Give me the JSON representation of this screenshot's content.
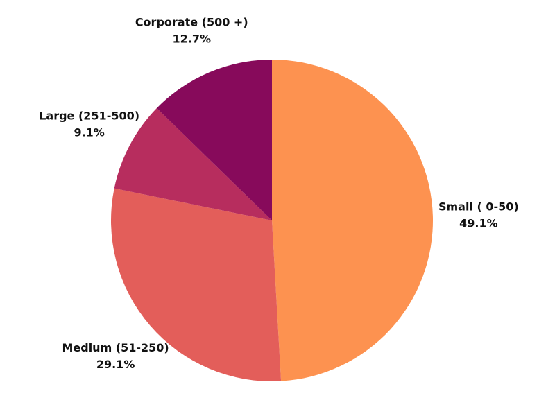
{
  "chart_data": {
    "type": "pie",
    "title": "",
    "slices": [
      {
        "label": "Small ( 0-50)",
        "value": 49.1,
        "pct_label": "49.1%",
        "color": "#fd9250"
      },
      {
        "label": "Medium (51-250)",
        "value": 29.1,
        "pct_label": "29.1%",
        "color": "#e35e5a"
      },
      {
        "label": "Large (251-500)",
        "value": 9.1,
        "pct_label": "9.1%",
        "color": "#b72d5e"
      },
      {
        "label": "Corporate (500 +)",
        "value": 12.7,
        "pct_label": "12.7%",
        "color": "#870a5b"
      }
    ],
    "start": "12 o'clock",
    "direction": "clockwise",
    "legend": "none"
  }
}
